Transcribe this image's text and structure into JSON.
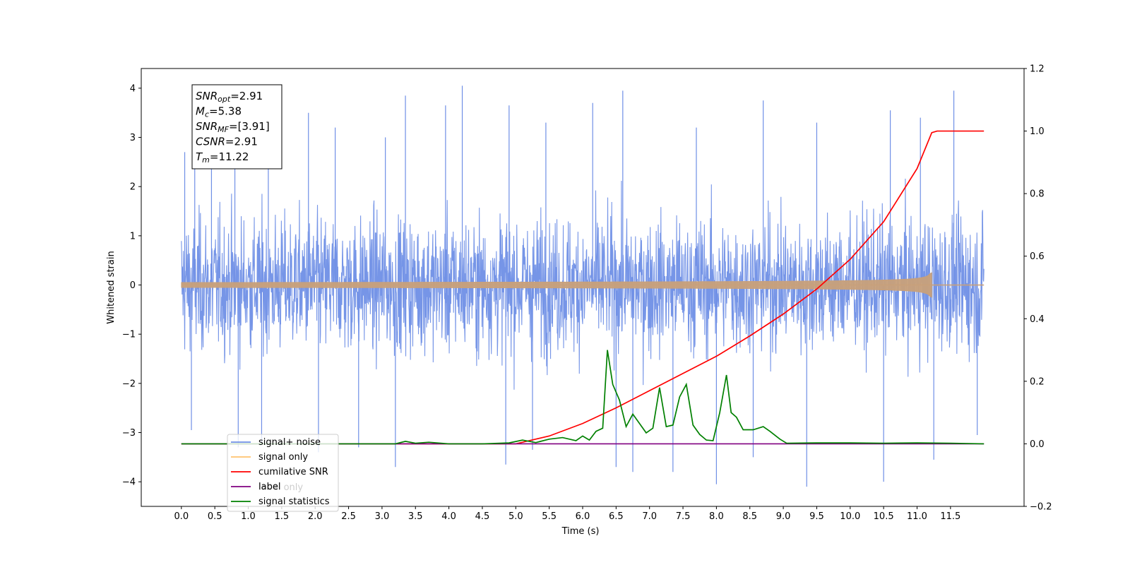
{
  "chart_data": {
    "type": "line",
    "xlabel": "Time (s)",
    "ylabel": "Whitened strain",
    "xlim": [
      -0.6,
      12.6
    ],
    "ylim": [
      -4.5,
      4.4
    ],
    "y2lim": [
      -0.2,
      1.2
    ],
    "x_ticks": [
      "0.0",
      "0.5",
      "1.0",
      "1.5",
      "2.0",
      "2.5",
      "3.0",
      "3.5",
      "4.0",
      "4.5",
      "5.0",
      "5.5",
      "6.0",
      "6.5",
      "7.0",
      "7.5",
      "8.0",
      "8.5",
      "9.0",
      "9.5",
      "10.0",
      "10.5",
      "11.0",
      "11.5"
    ],
    "y_ticks": [
      "4",
      "3",
      "2",
      "1",
      "0",
      "−1",
      "−2",
      "−3",
      "−4"
    ],
    "y2_ticks": [
      "1.2",
      "1.0",
      "0.8",
      "0.6",
      "0.4",
      "0.2",
      "0.0",
      "−0.2"
    ],
    "annotation": {
      "lines": [
        {
          "sym": "SNR",
          "sub": "opt",
          "val": "=2.91"
        },
        {
          "sym": "M",
          "sub": "c",
          "val": "=5.38"
        },
        {
          "sym": "SNR",
          "sub": "MF",
          "val": "=[3.91]"
        },
        {
          "sym": "CSNR",
          "sub": "",
          "val": "=2.91"
        },
        {
          "sym": "T",
          "sub": "m",
          "val": "=11.22"
        }
      ]
    },
    "legend": {
      "placement": "lower-left",
      "entries": [
        {
          "label": "signal+ noise",
          "color": "#6f8fe6"
        },
        {
          "label": "signal only",
          "color": "#ffc36e"
        },
        {
          "label": "cumilative SNR",
          "color": "#ff0000"
        },
        {
          "label": "label",
          "color": "#800080"
        },
        {
          "label": "signal statistics",
          "color": "#008000"
        }
      ],
      "hidden_text": "label only"
    },
    "series": [
      {
        "name": "signal+ noise",
        "axis": "left",
        "style": "noise",
        "color": "#6f8fe6",
        "x_range": [
          0.0,
          12.0
        ],
        "spikes": [
          {
            "x": 0.05,
            "y": 2.7
          },
          {
            "x": 0.2,
            "y": 3.05
          },
          {
            "x": 0.45,
            "y": 3.0
          },
          {
            "x": 0.8,
            "y": 2.6
          },
          {
            "x": 1.3,
            "y": 3.4
          },
          {
            "x": 1.9,
            "y": 3.5
          },
          {
            "x": 2.3,
            "y": 3.2
          },
          {
            "x": 3.05,
            "y": 3.0
          },
          {
            "x": 3.35,
            "y": 3.85
          },
          {
            "x": 3.95,
            "y": 3.65
          },
          {
            "x": 4.2,
            "y": 4.05
          },
          {
            "x": 4.9,
            "y": 3.65
          },
          {
            "x": 5.45,
            "y": 3.3
          },
          {
            "x": 6.15,
            "y": 3.7
          },
          {
            "x": 6.6,
            "y": 3.95
          },
          {
            "x": 7.7,
            "y": 3.2
          },
          {
            "x": 8.7,
            "y": 3.75
          },
          {
            "x": 9.5,
            "y": 3.3
          },
          {
            "x": 10.6,
            "y": 3.55
          },
          {
            "x": 11.05,
            "y": 3.4
          },
          {
            "x": 11.55,
            "y": 3.95
          },
          {
            "x": 0.15,
            "y": -2.95
          },
          {
            "x": 0.85,
            "y": -3.3
          },
          {
            "x": 1.2,
            "y": -3.2
          },
          {
            "x": 2.05,
            "y": -3.4
          },
          {
            "x": 2.65,
            "y": -3.3
          },
          {
            "x": 3.2,
            "y": -3.7
          },
          {
            "x": 4.85,
            "y": -3.65
          },
          {
            "x": 5.25,
            "y": -3.35
          },
          {
            "x": 6.5,
            "y": -3.7
          },
          {
            "x": 6.75,
            "y": -3.8
          },
          {
            "x": 7.35,
            "y": -3.8
          },
          {
            "x": 8.0,
            "y": -4.05
          },
          {
            "x": 8.55,
            "y": -3.5
          },
          {
            "x": 9.35,
            "y": -4.1
          },
          {
            "x": 10.5,
            "y": -4.0
          },
          {
            "x": 11.25,
            "y": -3.55
          },
          {
            "x": 11.9,
            "y": -3.05
          }
        ]
      },
      {
        "name": "signal only",
        "axis": "left",
        "style": "chirp",
        "color": "#c8a07a",
        "x_range": [
          0.0,
          12.0
        ],
        "merger_time": 11.22,
        "max_amplitude": 0.25
      },
      {
        "name": "cumilative SNR",
        "axis": "right",
        "color": "#ff0000",
        "x": [
          0.0,
          5.0,
          5.5,
          6.0,
          6.5,
          7.0,
          7.5,
          8.0,
          8.5,
          9.0,
          9.5,
          10.0,
          10.5,
          11.0,
          11.22,
          11.3,
          12.0
        ],
        "y": [
          0.0,
          0.0,
          0.025,
          0.065,
          0.115,
          0.17,
          0.225,
          0.28,
          0.345,
          0.415,
          0.495,
          0.59,
          0.71,
          0.88,
          0.995,
          1.0,
          1.0
        ]
      },
      {
        "name": "label",
        "axis": "right",
        "color": "#800080",
        "x": [
          0.0,
          12.0
        ],
        "y": [
          0.0,
          0.0
        ]
      },
      {
        "name": "signal statistics",
        "axis": "right",
        "color": "#008000",
        "x": [
          0.0,
          3.2,
          3.35,
          3.5,
          3.7,
          4.0,
          4.5,
          4.9,
          5.1,
          5.3,
          5.5,
          5.7,
          5.9,
          6.0,
          6.1,
          6.2,
          6.3,
          6.37,
          6.45,
          6.55,
          6.65,
          6.75,
          6.85,
          6.95,
          7.05,
          7.15,
          7.25,
          7.35,
          7.45,
          7.55,
          7.65,
          7.75,
          7.85,
          7.95,
          8.05,
          8.15,
          8.22,
          8.3,
          8.4,
          8.55,
          8.7,
          8.8,
          8.95,
          9.05,
          9.5,
          10.0,
          10.5,
          11.0,
          11.5,
          12.0
        ],
        "y": [
          0.0,
          0.0,
          0.008,
          0.002,
          0.005,
          0.0,
          0.0,
          0.003,
          0.012,
          0.004,
          0.015,
          0.02,
          0.01,
          0.025,
          0.012,
          0.04,
          0.05,
          0.3,
          0.19,
          0.14,
          0.055,
          0.095,
          0.065,
          0.035,
          0.05,
          0.18,
          0.055,
          0.06,
          0.15,
          0.19,
          0.06,
          0.03,
          0.012,
          0.01,
          0.1,
          0.22,
          0.1,
          0.085,
          0.045,
          0.045,
          0.055,
          0.04,
          0.015,
          0.002,
          0.003,
          0.003,
          0.002,
          0.003,
          0.002,
          0.0
        ]
      }
    ]
  }
}
